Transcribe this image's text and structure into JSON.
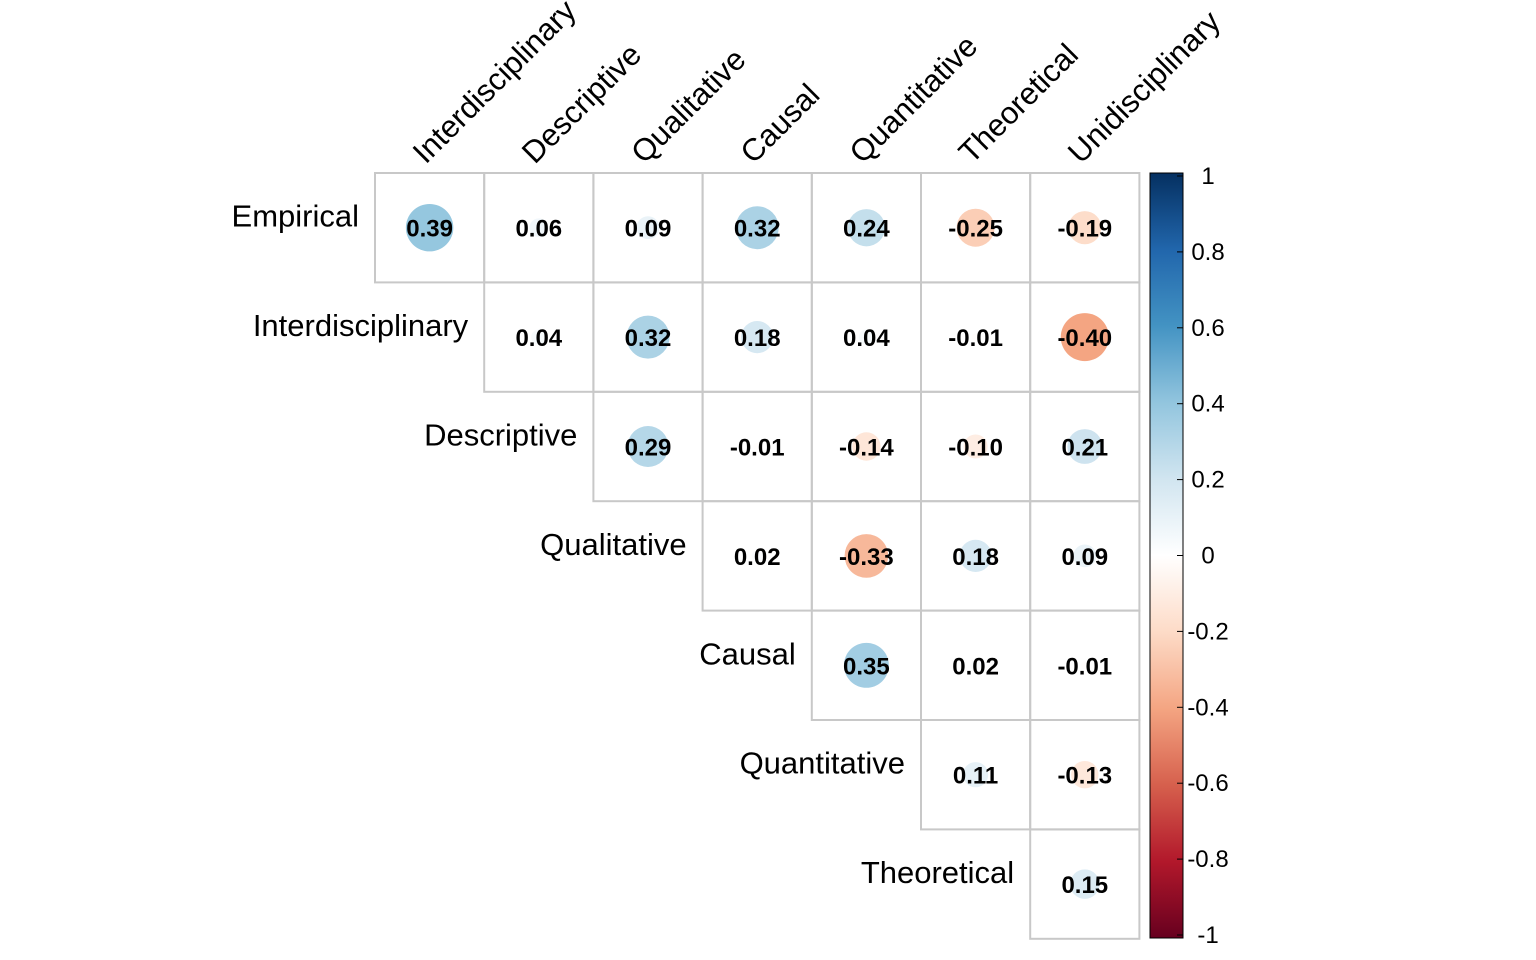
{
  "chart_data": {
    "type": "heatmap",
    "subtype": "correlation-matrix-upper-triangle",
    "row_labels": [
      "Empirical",
      "Interdisciplinary",
      "Descriptive",
      "Qualitative",
      "Causal",
      "Quantitative",
      "Theoretical"
    ],
    "column_labels": [
      "Interdisciplinary",
      "Descriptive",
      "Qualitative",
      "Causal",
      "Quantitative",
      "Theoretical",
      "Unidisciplinary"
    ],
    "values": [
      [
        0.39,
        0.06,
        0.09,
        0.32,
        0.24,
        -0.25,
        -0.19
      ],
      [
        null,
        0.04,
        0.32,
        0.18,
        0.04,
        -0.01,
        -0.4
      ],
      [
        null,
        null,
        0.29,
        -0.01,
        -0.14,
        -0.1,
        0.21
      ],
      [
        null,
        null,
        null,
        0.02,
        -0.33,
        0.18,
        0.09
      ],
      [
        null,
        null,
        null,
        null,
        0.35,
        0.02,
        -0.01
      ],
      [
        null,
        null,
        null,
        null,
        null,
        0.11,
        -0.13
      ],
      [
        null,
        null,
        null,
        null,
        null,
        null,
        0.15
      ]
    ],
    "value_labels": [
      [
        "0.39",
        "0.06",
        "0.09",
        "0.32",
        "0.24",
        "-0.25",
        "-0.19"
      ],
      [
        null,
        "0.04",
        "0.32",
        "0.18",
        "0.04",
        "-0.01",
        "-0.40"
      ],
      [
        null,
        null,
        "0.29",
        "-0.01",
        "-0.14",
        "-0.10",
        "0.21"
      ],
      [
        null,
        null,
        null,
        "0.02",
        "-0.33",
        "0.18",
        "0.09"
      ],
      [
        null,
        null,
        null,
        null,
        "0.35",
        "0.02",
        "-0.01"
      ],
      [
        null,
        null,
        null,
        null,
        null,
        "0.11",
        "-0.13"
      ],
      [
        null,
        null,
        null,
        null,
        null,
        null,
        "0.15"
      ]
    ],
    "marker": "circle",
    "color_range": [
      -1,
      1
    ],
    "colorbar_ticks": [
      "1",
      "0.8",
      "0.6",
      "0.4",
      "0.2",
      "0",
      "-0.2",
      "-0.4",
      "-0.6",
      "-0.8",
      "-1"
    ],
    "colorscale": [
      "#67001F",
      "#B2182B",
      "#D6604D",
      "#F4A582",
      "#FDDBC7",
      "#FFFFFF",
      "#D1E5F0",
      "#92C5DE",
      "#4393C3",
      "#2166AC",
      "#053061"
    ]
  }
}
